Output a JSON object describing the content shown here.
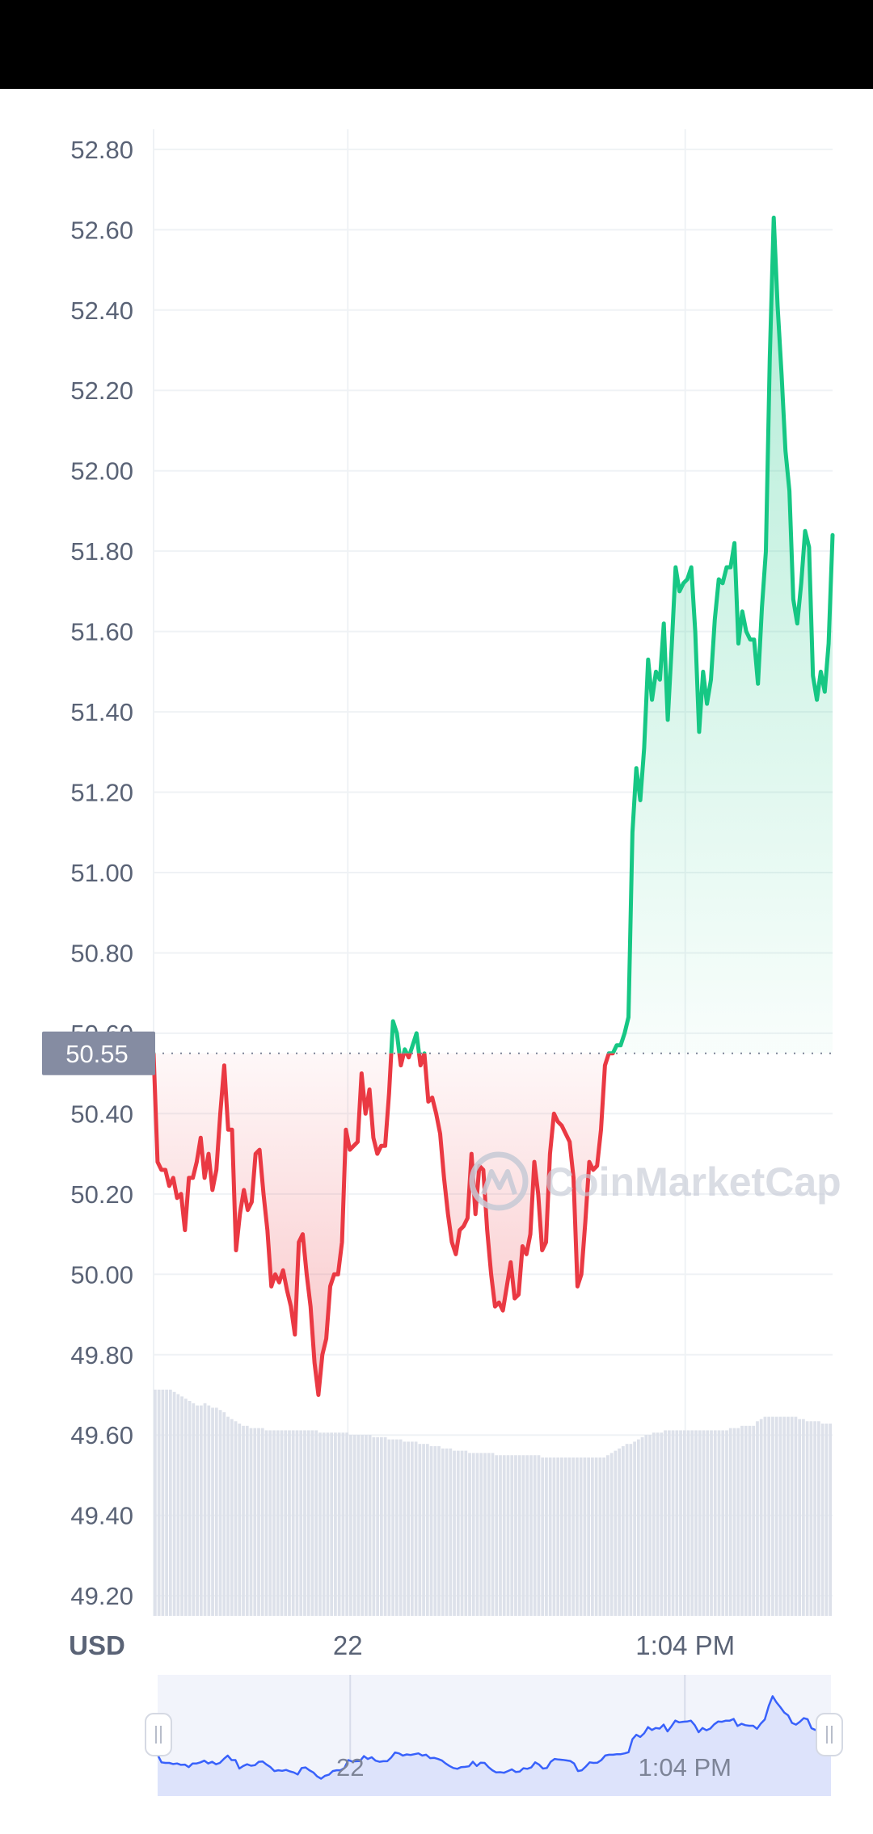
{
  "colors": {
    "up": "#16c784",
    "down": "#ea3943",
    "grid": "#eff2f5",
    "axis_text": "#5a6376",
    "price_tag_bg": "#858ca2",
    "volume": "#dde1ea",
    "navigator_fill": "#dde3fb",
    "navigator_line": "#3861fb"
  },
  "watermark": {
    "text": "CoinMarketCap",
    "icon": "coinmarketcap-logo-icon"
  },
  "currency_label": "USD",
  "current_price": "50.55",
  "navigator": {
    "x_ticks": [
      "22",
      "1:04 PM"
    ]
  },
  "chart_data": {
    "type": "line",
    "title": "",
    "xlabel": "",
    "ylabel": "USD",
    "baseline": 50.55,
    "ylim": [
      49.15,
      52.85
    ],
    "y_ticks": [
      "52.80",
      "52.60",
      "52.40",
      "52.20",
      "52.00",
      "51.80",
      "51.60",
      "51.40",
      "51.20",
      "51.00",
      "50.80",
      "50.60",
      "50.40",
      "50.20",
      "50.00",
      "49.80",
      "49.60",
      "49.40",
      "49.20"
    ],
    "x_ticks": [
      {
        "label": "22",
        "t": 0.286
      },
      {
        "label": "1:04 PM",
        "t": 0.783
      }
    ],
    "grid": true,
    "series": [
      {
        "values": [
          50.55,
          50.28,
          50.26,
          50.26,
          50.22,
          50.24,
          50.19,
          50.2,
          50.11,
          50.24,
          50.24,
          50.28,
          50.34,
          50.24,
          50.3,
          50.21,
          50.26,
          50.4,
          50.52,
          50.36,
          50.36,
          50.06,
          50.15,
          50.21,
          50.16,
          50.18,
          50.3,
          50.31,
          50.2,
          50.11,
          49.97,
          50.0,
          49.98,
          50.01,
          49.96,
          49.92,
          49.85,
          50.08,
          50.1,
          50.0,
          49.92,
          49.78,
          49.7,
          49.8,
          49.84,
          49.97,
          50.0,
          50.0,
          50.08,
          50.36,
          50.31,
          50.32,
          50.33,
          50.5,
          50.4,
          50.46,
          50.34,
          50.3,
          50.32,
          50.32,
          50.45,
          50.63,
          50.6,
          50.52,
          50.56,
          50.54,
          50.57,
          50.6,
          50.52,
          50.55,
          50.43,
          50.44,
          50.4,
          50.35,
          50.24,
          50.15,
          50.08,
          50.05,
          50.11,
          50.12,
          50.14,
          50.3,
          50.15,
          50.27,
          50.26,
          50.11,
          50.0,
          49.92,
          49.93,
          49.91,
          49.97,
          50.03,
          49.94,
          49.95,
          50.07,
          50.05,
          50.1,
          50.28,
          50.2,
          50.06,
          50.08,
          50.3,
          50.4,
          50.38,
          50.37,
          50.35,
          50.33,
          50.24,
          49.97,
          50.0,
          50.13,
          50.28,
          50.26,
          50.27,
          50.36,
          50.52,
          50.55,
          50.55,
          50.57,
          50.57,
          50.6,
          50.64,
          51.1,
          51.26,
          51.18,
          51.31,
          51.53,
          51.43,
          51.5,
          51.48,
          51.62,
          51.38,
          51.56,
          51.76,
          51.7,
          51.72,
          51.73,
          51.76,
          51.6,
          51.35,
          51.5,
          51.42,
          51.48,
          51.63,
          51.73,
          51.72,
          51.76,
          51.76,
          51.82,
          51.57,
          51.65,
          51.6,
          51.58,
          51.58,
          51.47,
          51.66,
          51.8,
          52.28,
          52.63,
          52.41,
          52.24,
          52.05,
          51.95,
          51.68,
          51.62,
          51.72,
          51.85,
          51.81,
          51.49,
          51.43,
          51.5,
          51.45,
          51.57,
          51.84
        ]
      }
    ],
    "volume": [
      1,
      1,
      1,
      1,
      1,
      0.99,
      0.98,
      0.97,
      0.96,
      0.95,
      0.94,
      0.93,
      0.93,
      0.94,
      0.93,
      0.92,
      0.92,
      0.91,
      0.9,
      0.88,
      0.87,
      0.86,
      0.85,
      0.84,
      0.84,
      0.83,
      0.83,
      0.83,
      0.83,
      0.82,
      0.82,
      0.82,
      0.82,
      0.82,
      0.82,
      0.82,
      0.82,
      0.82,
      0.82,
      0.82,
      0.82,
      0.82,
      0.82,
      0.81,
      0.81,
      0.81,
      0.81,
      0.81,
      0.81,
      0.81,
      0.81,
      0.8,
      0.8,
      0.8,
      0.8,
      0.8,
      0.8,
      0.79,
      0.79,
      0.79,
      0.79,
      0.78,
      0.78,
      0.78,
      0.78,
      0.77,
      0.77,
      0.77,
      0.77,
      0.76,
      0.76,
      0.76,
      0.75,
      0.75,
      0.75,
      0.74,
      0.74,
      0.74,
      0.73,
      0.73,
      0.73,
      0.73,
      0.72,
      0.72,
      0.72,
      0.72,
      0.72,
      0.72,
      0.72,
      0.71,
      0.71,
      0.71,
      0.71,
      0.71,
      0.71,
      0.71,
      0.71,
      0.71,
      0.71,
      0.71,
      0.71,
      0.7,
      0.7,
      0.7,
      0.7,
      0.7,
      0.7,
      0.7,
      0.7,
      0.7,
      0.7,
      0.7,
      0.7,
      0.7,
      0.7,
      0.7,
      0.7,
      0.7,
      0.71,
      0.72,
      0.73,
      0.74,
      0.75,
      0.76,
      0.76,
      0.77,
      0.78,
      0.79,
      0.8,
      0.8,
      0.81,
      0.81,
      0.81,
      0.82,
      0.82,
      0.82,
      0.82,
      0.82,
      0.82,
      0.82,
      0.82,
      0.82,
      0.82,
      0.82,
      0.82,
      0.82,
      0.82,
      0.82,
      0.82,
      0.82,
      0.83,
      0.83,
      0.83,
      0.84,
      0.84,
      0.84,
      0.84,
      0.86,
      0.87,
      0.88,
      0.88,
      0.88,
      0.88,
      0.88,
      0.88,
      0.88,
      0.88,
      0.88,
      0.87,
      0.87,
      0.86,
      0.86,
      0.86,
      0.86,
      0.85,
      0.85,
      0.85
    ]
  }
}
